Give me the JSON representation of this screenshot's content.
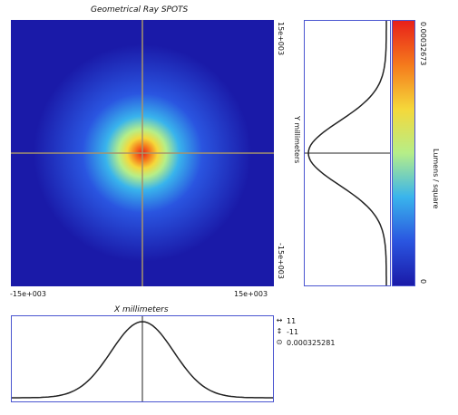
{
  "spot_plot": {
    "title": "Geometrical Ray SPOTS",
    "x_min_label": "-15e+003",
    "x_max_label": "15e+003",
    "y_max_label": "15e+003",
    "y_min_label": "-15e+003"
  },
  "y_profile": {
    "axis_label": "Y millimeters"
  },
  "colorbar": {
    "max_label": "0.00032673",
    "min_label": "0",
    "unit_label": "Lumens / square",
    "colors": [
      "#1a1aa8",
      "#2a55e0",
      "#39b4ec",
      "#b6ee88",
      "#f5d83a",
      "#f57a1c",
      "#e8201a"
    ]
  },
  "x_profile": {
    "axis_label": "X millimeters"
  },
  "readout": {
    "h_arrow_value": "11",
    "v_arrow_value": "-11",
    "marker_value": "0.000325281"
  },
  "chart_data": {
    "type": "heatmap",
    "title": "Geometrical Ray SPOTS",
    "xlabel": "X millimeters",
    "ylabel": "Y millimeters",
    "xlim": [
      -15000,
      15000
    ],
    "ylim": [
      -15000,
      15000
    ],
    "x_tick_labels": [
      "-15e+003",
      "15e+003"
    ],
    "y_tick_labels": [
      "-15e+003",
      "15e+003"
    ],
    "color_scale": {
      "min": 0,
      "max": 0.00032673,
      "label": "Lumens / square"
    },
    "spot_center": [
      0,
      0
    ],
    "peak_value": 0.000325281,
    "crosshair": [
      0,
      0
    ]
  }
}
